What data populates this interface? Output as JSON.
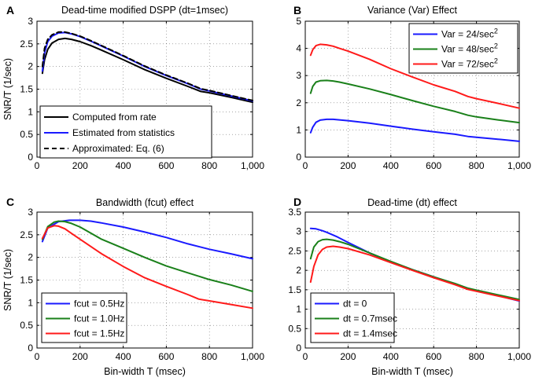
{
  "colors": {
    "black": "#000000",
    "blue": "#1a1aff",
    "green": "#1a801a",
    "red": "#ff1a1a"
  },
  "chart_data": [
    {
      "panel_label": "A",
      "type": "line",
      "title": "Dead-time modified DSPP (dt=1msec)",
      "xlabel": "",
      "ylabel": "SNR/T (1/sec)",
      "xlim": [
        0,
        1000
      ],
      "ylim": [
        0,
        3
      ],
      "xticks": [
        0,
        200,
        400,
        600,
        800,
        1000
      ],
      "xtick_labels": [
        "0",
        "200",
        "400",
        "600",
        "800",
        "1,000"
      ],
      "yticks": [
        0,
        0.5,
        1,
        1.5,
        2,
        2.5,
        3
      ],
      "ytick_labels": [
        "0",
        "0.5",
        "1",
        "1.5",
        "2",
        "2.5",
        "3"
      ],
      "grid": true,
      "legend_position": "bottom-left",
      "series": [
        {
          "name": "Computed from rate",
          "color": "#000000",
          "dash": "",
          "x": [
            25,
            35,
            50,
            70,
            100,
            130,
            160,
            200,
            250,
            300,
            400,
            500,
            600,
            700,
            760,
            800,
            900,
            1000
          ],
          "y": [
            1.85,
            2.15,
            2.38,
            2.52,
            2.6,
            2.62,
            2.6,
            2.55,
            2.46,
            2.36,
            2.15,
            1.93,
            1.74,
            1.56,
            1.45,
            1.42,
            1.32,
            1.21
          ]
        },
        {
          "name": "Estimated from statistics",
          "color": "#1a1aff",
          "dash": "",
          "x": [
            25,
            35,
            50,
            70,
            100,
            130,
            160,
            200,
            250,
            300,
            400,
            500,
            600,
            700,
            760,
            800,
            900,
            1000
          ],
          "y": [
            1.9,
            2.3,
            2.55,
            2.67,
            2.74,
            2.75,
            2.72,
            2.66,
            2.56,
            2.45,
            2.23,
            2.0,
            1.8,
            1.62,
            1.5,
            1.46,
            1.35,
            1.24
          ]
        },
        {
          "name": "Approximated: Eq. (6)",
          "color": "#000000",
          "dash": "6,4",
          "x": [
            25,
            35,
            50,
            70,
            100,
            130,
            160,
            200,
            250,
            300,
            400,
            500,
            600,
            700,
            760,
            800,
            900,
            1000
          ],
          "y": [
            2.0,
            2.4,
            2.6,
            2.7,
            2.76,
            2.76,
            2.73,
            2.67,
            2.57,
            2.46,
            2.24,
            2.01,
            1.81,
            1.63,
            1.51,
            1.47,
            1.36,
            1.25
          ]
        }
      ]
    },
    {
      "panel_label": "B",
      "type": "line",
      "title": "Variance (Var) Effect",
      "xlabel": "",
      "ylabel": "",
      "xlim": [
        0,
        1000
      ],
      "ylim": [
        0,
        5
      ],
      "xticks": [
        0,
        200,
        400,
        600,
        800,
        1000
      ],
      "xtick_labels": [
        "0",
        "200",
        "400",
        "600",
        "800",
        "1,000"
      ],
      "yticks": [
        0,
        1,
        2,
        3,
        4,
        5
      ],
      "ytick_labels": [
        "0",
        "1",
        "2",
        "3",
        "4",
        "5"
      ],
      "grid": true,
      "legend_position": "top-right",
      "series": [
        {
          "name": "Var = 24/sec",
          "sup": "2",
          "color": "#1a1aff",
          "dash": "",
          "x": [
            25,
            35,
            50,
            70,
            100,
            130,
            160,
            200,
            300,
            400,
            500,
            600,
            700,
            760,
            800,
            900,
            1000
          ],
          "y": [
            0.9,
            1.1,
            1.28,
            1.36,
            1.39,
            1.39,
            1.37,
            1.34,
            1.25,
            1.14,
            1.03,
            0.93,
            0.84,
            0.76,
            0.73,
            0.66,
            0.58
          ]
        },
        {
          "name": "Var = 48/sec",
          "sup": "2",
          "color": "#1a801a",
          "dash": "",
          "x": [
            25,
            35,
            50,
            70,
            100,
            130,
            160,
            200,
            300,
            400,
            500,
            600,
            700,
            760,
            800,
            900,
            1000
          ],
          "y": [
            2.35,
            2.6,
            2.76,
            2.81,
            2.82,
            2.8,
            2.76,
            2.69,
            2.51,
            2.3,
            2.08,
            1.87,
            1.68,
            1.54,
            1.48,
            1.37,
            1.27
          ]
        },
        {
          "name": "Var = 72/sec",
          "sup": "2",
          "color": "#ff1a1a",
          "dash": "",
          "x": [
            25,
            35,
            50,
            70,
            100,
            130,
            160,
            200,
            300,
            400,
            500,
            600,
            700,
            760,
            800,
            900,
            1000
          ],
          "y": [
            3.75,
            3.95,
            4.1,
            4.15,
            4.13,
            4.08,
            4.0,
            3.9,
            3.6,
            3.25,
            2.95,
            2.66,
            2.42,
            2.23,
            2.15,
            1.98,
            1.8
          ]
        }
      ]
    },
    {
      "panel_label": "C",
      "type": "line",
      "title": "Bandwidth (fcut) effect",
      "xlabel": "Bin-width T (msec)",
      "ylabel": "SNR/T (1/sec)",
      "xlim": [
        0,
        1000
      ],
      "ylim": [
        0,
        3
      ],
      "xticks": [
        0,
        200,
        400,
        600,
        800,
        1000
      ],
      "xtick_labels": [
        "0",
        "200",
        "400",
        "600",
        "800",
        "1,000"
      ],
      "yticks": [
        0,
        0.5,
        1,
        1.5,
        2,
        2.5,
        3
      ],
      "ytick_labels": [
        "0",
        "0.5",
        "1",
        "1.5",
        "2",
        "2.5",
        "3"
      ],
      "grid": true,
      "legend_position": "bottom-left",
      "series": [
        {
          "name": "fcut = 0.5Hz",
          "color": "#1a1aff",
          "dash": "",
          "x": [
            25,
            50,
            100,
            150,
            200,
            250,
            300,
            400,
            500,
            600,
            700,
            800,
            900,
            1000
          ],
          "y": [
            2.35,
            2.65,
            2.79,
            2.82,
            2.82,
            2.8,
            2.76,
            2.67,
            2.56,
            2.44,
            2.3,
            2.18,
            2.08,
            1.97
          ]
        },
        {
          "name": "fcut = 1.0Hz",
          "color": "#1a801a",
          "dash": "",
          "x": [
            25,
            50,
            80,
            100,
            130,
            160,
            200,
            300,
            400,
            500,
            600,
            700,
            800,
            900,
            1000
          ],
          "y": [
            2.4,
            2.68,
            2.78,
            2.8,
            2.79,
            2.75,
            2.67,
            2.4,
            2.2,
            2.0,
            1.81,
            1.66,
            1.51,
            1.39,
            1.25
          ]
        },
        {
          "name": "fcut = 1.5Hz",
          "color": "#ff1a1a",
          "dash": "",
          "x": [
            25,
            50,
            80,
            100,
            130,
            160,
            200,
            300,
            400,
            500,
            600,
            700,
            750,
            800,
            900,
            1000
          ],
          "y": [
            2.42,
            2.65,
            2.7,
            2.69,
            2.63,
            2.53,
            2.4,
            2.08,
            1.8,
            1.55,
            1.36,
            1.18,
            1.08,
            1.04,
            0.96,
            0.88
          ]
        }
      ]
    },
    {
      "panel_label": "D",
      "type": "line",
      "title": "Dead-time (dt) effect",
      "xlabel": "Bin-width T (msec)",
      "ylabel": "",
      "xlim": [
        0,
        1000
      ],
      "ylim": [
        0,
        3.5
      ],
      "xticks": [
        0,
        200,
        400,
        600,
        800,
        1000
      ],
      "xtick_labels": [
        "0",
        "200",
        "400",
        "600",
        "800",
        "1,000"
      ],
      "yticks": [
        0,
        0.5,
        1,
        1.5,
        2,
        2.5,
        3,
        3.5
      ],
      "ytick_labels": [
        "0",
        "0.5",
        "1",
        "1.5",
        "2",
        "2.5",
        "3",
        "3.5"
      ],
      "grid": true,
      "legend_position": "bottom-left",
      "series": [
        {
          "name": "dt = 0",
          "color": "#1a1aff",
          "dash": "",
          "x": [
            25,
            50,
            80,
            100,
            150,
            200,
            300,
            400,
            500,
            600,
            700,
            760,
            800,
            900,
            1000
          ],
          "y": [
            3.08,
            3.07,
            3.02,
            2.98,
            2.86,
            2.72,
            2.45,
            2.22,
            2.02,
            1.83,
            1.65,
            1.54,
            1.47,
            1.35,
            1.21
          ]
        },
        {
          "name": "dt = 0.7msec",
          "color": "#1a801a",
          "dash": "",
          "x": [
            25,
            40,
            60,
            80,
            100,
            130,
            160,
            200,
            300,
            400,
            500,
            600,
            700,
            760,
            800,
            900,
            1000
          ],
          "y": [
            2.3,
            2.6,
            2.74,
            2.79,
            2.8,
            2.78,
            2.74,
            2.67,
            2.45,
            2.23,
            2.02,
            1.83,
            1.66,
            1.54,
            1.49,
            1.37,
            1.25
          ]
        },
        {
          "name": "dt = 1.4msec",
          "color": "#ff1a1a",
          "dash": "",
          "x": [
            25,
            40,
            60,
            80,
            100,
            130,
            160,
            200,
            300,
            400,
            500,
            600,
            700,
            760,
            800,
            900,
            1000
          ],
          "y": [
            1.7,
            2.1,
            2.4,
            2.54,
            2.6,
            2.62,
            2.6,
            2.56,
            2.4,
            2.2,
            2.0,
            1.81,
            1.63,
            1.51,
            1.46,
            1.34,
            1.22
          ]
        }
      ]
    }
  ]
}
